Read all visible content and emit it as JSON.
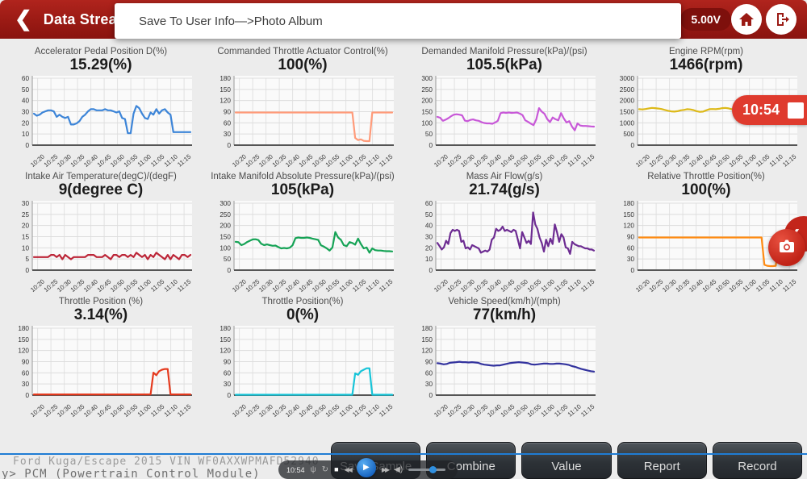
{
  "header": {
    "back_icon": "❮",
    "title": "Data Stream",
    "voltage": "5.00V"
  },
  "toast": {
    "message": "Save To User Info—>Photo Album"
  },
  "recording_badge": {
    "time": "10:54"
  },
  "footer": {
    "vehicle_info": "Ford Kuga/Escape 2015 VIN WF0AXXWPMAFD52940",
    "module_path": "y> PCM (Powertrain Control Module)",
    "buttons": [
      "Save Sample",
      "Combine",
      "Value",
      "Report",
      "Record"
    ]
  },
  "recorder_bar": {
    "time": "10:54",
    "mic_icon": "ψ",
    "loop_icon": "↻",
    "stop_icon": "■",
    "rewind_icon": "◀◀",
    "play_icon": "▶",
    "forward_icon": "▶▶",
    "volume_icon": "◀)"
  },
  "fab": {
    "chevron_icon": "❮"
  },
  "colors": {
    "header_red": "#9a1a14",
    "badge_red": "#df3b2e",
    "blue_line": "#1f7cd4"
  },
  "chart_data": {
    "type": "line",
    "x_labels": [
      "10:20",
      "10:25",
      "10:30",
      "10:35",
      "10:40",
      "10:45",
      "10:50",
      "10:55",
      "11:00",
      "11:05",
      "11:10",
      "11:15"
    ],
    "charts": [
      {
        "title": "Accelerator Pedal Position D(%)",
        "value": "15.29(%)",
        "color": "#3d85d8",
        "ymax": 60,
        "yticks": [
          0,
          10,
          20,
          30,
          40,
          50,
          60
        ],
        "values": [
          29,
          27,
          28,
          30,
          31,
          32,
          32,
          31,
          26,
          28,
          26,
          25,
          26,
          19,
          19,
          20,
          22,
          26,
          28,
          31,
          33,
          33,
          32,
          32,
          32,
          33,
          32,
          32,
          31,
          30,
          31,
          25,
          24,
          11,
          11,
          29,
          36,
          34,
          29,
          25,
          24,
          30,
          28,
          33,
          29,
          32,
          33,
          30,
          28,
          12,
          12,
          12,
          12,
          12,
          12,
          12
        ]
      },
      {
        "title": "Commanded Throttle Actuator Control(%)",
        "value": "100(%)",
        "color": "#ff9b7a",
        "ymax": 180,
        "yticks": [
          0,
          30,
          60,
          90,
          120,
          150,
          180
        ],
        "values": [
          90,
          90,
          90,
          90,
          90,
          90,
          90,
          90,
          90,
          90,
          90,
          90,
          90,
          90,
          90,
          90,
          90,
          90,
          90,
          90,
          90,
          90,
          90,
          90,
          90,
          90,
          90,
          90,
          90,
          90,
          90,
          90,
          90,
          90,
          90,
          90,
          90,
          90,
          90,
          90,
          90,
          90,
          20,
          14,
          16,
          12,
          11,
          11,
          90,
          90,
          90,
          90,
          90,
          90,
          90,
          90
        ]
      },
      {
        "title": "Demanded Manifold Pressure(kPa)/(psi)",
        "value": "105.5(kPa)",
        "color": "#c858d8",
        "ymax": 300,
        "yticks": [
          0,
          50,
          100,
          150,
          200,
          250,
          300
        ],
        "values": [
          130,
          126,
          112,
          117,
          124,
          133,
          140,
          142,
          140,
          137,
          113,
          110,
          116,
          118,
          114,
          112,
          106,
          102,
          100,
          100,
          98,
          104,
          112,
          147,
          150,
          148,
          150,
          148,
          149,
          150,
          145,
          138,
          114,
          107,
          99,
          92,
          118,
          170,
          154,
          144,
          120,
          106,
          127,
          119,
          114,
          147,
          123,
          104,
          110,
          85,
          68,
          100,
          90,
          88,
          88,
          87,
          86,
          85
        ]
      },
      {
        "title": "Engine RPM(rpm)",
        "value": "1466(rpm)",
        "color": "#ddb918",
        "ymax": 3000,
        "yticks": [
          0,
          500,
          1000,
          1500,
          2000,
          2500,
          3000
        ],
        "values": [
          1650,
          1640,
          1660,
          1690,
          1710,
          1700,
          1680,
          1660,
          1620,
          1580,
          1550,
          1540,
          1560,
          1600,
          1620,
          1650,
          1640,
          1610,
          1560,
          1530,
          1540,
          1600,
          1650,
          1660,
          1650,
          1670,
          1700,
          1710,
          1690,
          1650,
          1690,
          1720,
          1740,
          1700,
          1660,
          1700,
          1720,
          1700,
          1680,
          1700,
          1690,
          1700,
          1700,
          1690,
          1700,
          1700,
          1690,
          1700,
          1700,
          1700
        ]
      },
      {
        "title": "Intake Air Temperature(degC)/(degF)",
        "value": "9(degree C)",
        "color": "#bc2638",
        "ymax": 30,
        "yticks": [
          0,
          5,
          10,
          15,
          20,
          25,
          30
        ],
        "values": [
          6,
          6,
          6,
          6,
          6,
          6,
          7,
          7,
          6,
          7,
          5,
          7,
          6,
          5,
          6,
          6,
          6,
          6,
          6,
          7,
          7,
          7,
          6,
          6,
          6,
          7,
          6,
          5,
          7,
          7,
          6,
          7,
          7,
          6,
          7,
          6,
          8,
          7,
          6,
          7,
          5,
          7,
          6,
          8,
          7,
          6,
          5,
          7,
          5,
          7,
          6,
          5,
          7,
          7,
          6,
          7
        ]
      },
      {
        "title": "Intake Manifold Absolute Pressure(kPa)/(psi)",
        "value": "105(kPa)",
        "color": "#16a356",
        "ymax": 300,
        "yticks": [
          0,
          50,
          100,
          150,
          200,
          250,
          300
        ],
        "values": [
          130,
          128,
          115,
          120,
          129,
          135,
          141,
          142,
          138,
          121,
          115,
          118,
          115,
          112,
          113,
          106,
          100,
          102,
          100,
          103,
          114,
          147,
          150,
          148,
          148,
          150,
          148,
          145,
          142,
          139,
          114,
          108,
          100,
          90,
          104,
          175,
          150,
          139,
          115,
          110,
          129,
          125,
          117,
          145,
          120,
          100,
          104,
          80,
          100,
          92,
          90,
          90,
          88,
          87,
          87,
          86
        ]
      },
      {
        "title": "Mass Air Flow(g/s)",
        "value": "21.74(g/s)",
        "color": "#6d2c92",
        "ymax": 60,
        "yticks": [
          0,
          10,
          20,
          30,
          40,
          50,
          60
        ],
        "values": [
          25,
          22,
          19,
          21,
          27,
          24,
          34,
          37,
          36,
          37,
          36,
          26,
          27,
          20,
          21,
          19,
          23,
          22,
          21,
          20,
          16,
          17,
          18,
          17,
          19,
          28,
          30,
          38,
          36,
          37,
          40,
          36,
          37,
          36,
          35,
          37,
          36,
          28,
          20,
          35,
          30,
          25,
          27,
          24,
          53,
          42,
          38,
          30,
          25,
          17,
          28,
          22,
          29,
          24,
          42,
          35,
          26,
          33,
          30,
          21,
          20,
          15,
          26,
          24,
          23,
          22,
          22,
          21,
          20,
          20,
          19,
          19,
          18
        ]
      },
      {
        "title": "Relative Throttle Position(%)",
        "value": "100(%)",
        "color": "#ff8b12",
        "ymax": 180,
        "yticks": [
          0,
          30,
          60,
          90,
          120,
          150,
          180
        ],
        "values": [
          90,
          90,
          90,
          90,
          90,
          90,
          90,
          90,
          90,
          90,
          90,
          90,
          90,
          90,
          90,
          90,
          90,
          90,
          90,
          90,
          90,
          90,
          90,
          90,
          90,
          90,
          90,
          90,
          90,
          90,
          90,
          90,
          90,
          90,
          90,
          90,
          90,
          90,
          90,
          90,
          90,
          90,
          90,
          90,
          15,
          12,
          11,
          11,
          12,
          90,
          90,
          90,
          90,
          90,
          90,
          90
        ]
      },
      {
        "title": "Throttle Position (%)",
        "value": "3.14(%)",
        "color": "#e53a1e",
        "ymax": 180,
        "yticks": [
          0,
          30,
          60,
          90,
          120,
          150,
          180
        ],
        "values": [
          2,
          2,
          2,
          2,
          2,
          2,
          2,
          2,
          2,
          2,
          2,
          2,
          2,
          2,
          2,
          2,
          2,
          2,
          2,
          2,
          2,
          2,
          2,
          2,
          2,
          2,
          2,
          2,
          2,
          2,
          2,
          2,
          2,
          2,
          2,
          2,
          2,
          2,
          2,
          2,
          2,
          2,
          62,
          55,
          66,
          70,
          72,
          72,
          2,
          2,
          2,
          2,
          2,
          2,
          2,
          2
        ]
      },
      {
        "title": "Throttle Position(%)",
        "value": "0(%)",
        "color": "#16c4d8",
        "ymax": 180,
        "yticks": [
          0,
          30,
          60,
          90,
          120,
          150,
          180
        ],
        "values": [
          1,
          1,
          1,
          1,
          1,
          1,
          1,
          1,
          1,
          1,
          1,
          1,
          1,
          1,
          1,
          1,
          1,
          1,
          1,
          1,
          1,
          1,
          1,
          1,
          1,
          1,
          1,
          1,
          1,
          1,
          1,
          1,
          1,
          1,
          1,
          1,
          1,
          1,
          1,
          1,
          1,
          1,
          60,
          56,
          66,
          70,
          74,
          74,
          1,
          1,
          1,
          1,
          1,
          1,
          1,
          1
        ]
      },
      {
        "title": "Vehicle Speed(km/h)/(mph)",
        "value": "77(km/h)",
        "color": "#33339e",
        "ymax": 180,
        "yticks": [
          0,
          30,
          60,
          90,
          120,
          150,
          180
        ],
        "values": [
          88,
          87,
          85,
          86,
          89,
          90,
          91,
          92,
          91,
          91,
          90,
          91,
          90,
          89,
          86,
          84,
          83,
          82,
          81,
          82,
          82,
          84,
          86,
          88,
          89,
          90,
          91,
          90,
          89,
          88,
          85,
          84,
          85,
          86,
          87,
          87,
          86,
          86,
          87,
          87,
          86,
          85,
          83,
          80,
          78,
          75,
          72,
          70,
          68,
          66,
          65
        ]
      }
    ]
  }
}
